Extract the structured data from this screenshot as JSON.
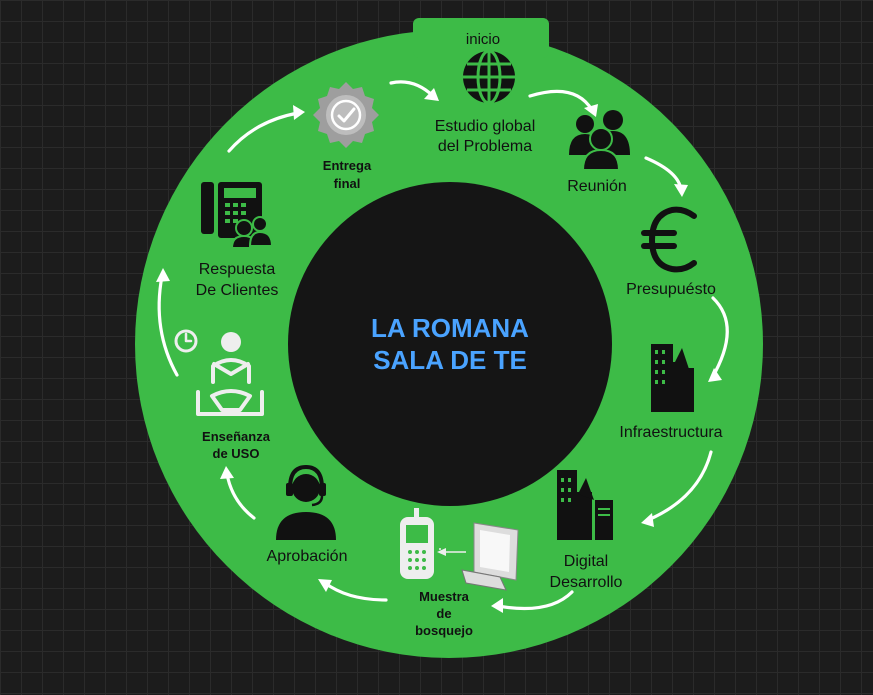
{
  "center": {
    "line1": "LA ROMANA",
    "line2": "SALA DE TE"
  },
  "start_tab": "inicio",
  "steps": {
    "estudio": {
      "line1": "Estudio global",
      "line2": "del Problema",
      "icon": "globe-icon"
    },
    "reunion": {
      "line1": "Reunión",
      "icon": "people-icon"
    },
    "presupuesto": {
      "line1": "Presupuésto",
      "icon": "euro-icon"
    },
    "infraestructura": {
      "line1": "Infraestructura",
      "icon": "buildings-icon"
    },
    "digital": {
      "line1": "Digital",
      "line2": "Desarrollo",
      "icon": "city-server-icon"
    },
    "muestra": {
      "line1": "Muestra",
      "line2": "de",
      "line3": "bosquejo",
      "icon": "phone-computer-icon"
    },
    "aprobacion": {
      "line1": "Aprobación",
      "icon": "headset-icon"
    },
    "ensenanza": {
      "line1": "Enseñanza",
      "line2": "de USO",
      "icon": "reading-person-icon"
    },
    "respuesta": {
      "line1": "Respuesta",
      "line2": "De Clientes",
      "icon": "office-phone-icon"
    },
    "entrega": {
      "line1": "Entrega",
      "line2": "final",
      "icon": "check-badge-icon"
    }
  },
  "colors": {
    "ring": "#3dbb47",
    "center": "#151515",
    "title": "#4aa3ff",
    "arrow": "#ffffff",
    "icon": "#111111"
  }
}
